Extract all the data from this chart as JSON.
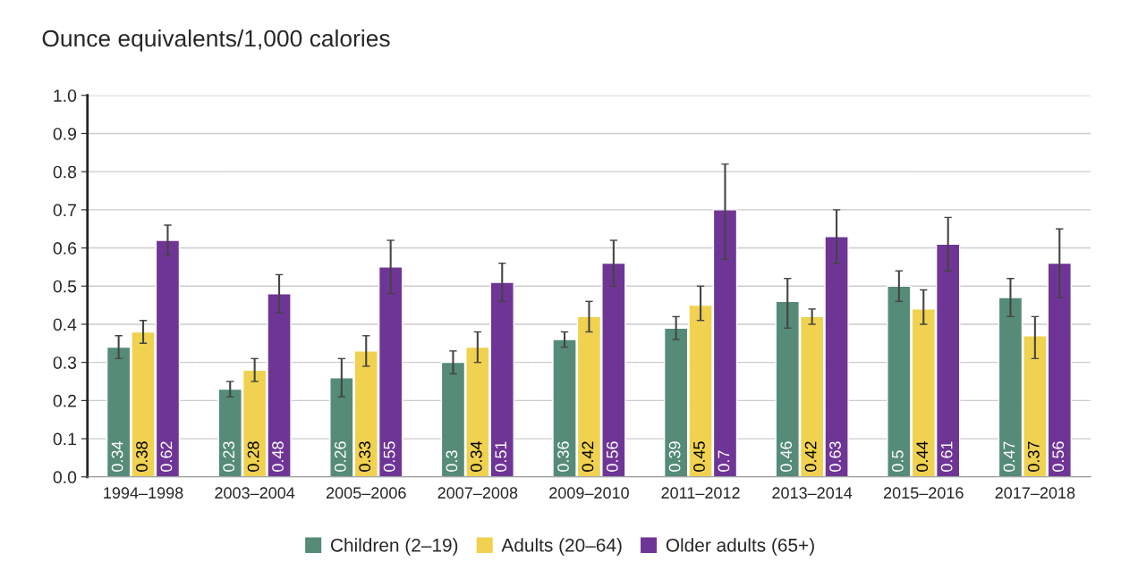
{
  "chart_data": {
    "type": "bar",
    "title": "Ounce equivalents/1,000 calories",
    "categories": [
      "1994–1998",
      "2003–2004",
      "2005–2006",
      "2007–2008",
      "2009–2010",
      "2011–2012",
      "2013–2014",
      "2015–2016",
      "2017–2018"
    ],
    "series": [
      {
        "name": "Children (2–19)",
        "color": "#558b77",
        "values": [
          0.34,
          0.23,
          0.26,
          0.3,
          0.36,
          0.39,
          0.46,
          0.5,
          0.47
        ],
        "errors": [
          [
            0.31,
            0.37
          ],
          [
            0.21,
            0.25
          ],
          [
            0.21,
            0.31
          ],
          [
            0.27,
            0.33
          ],
          [
            0.34,
            0.38
          ],
          [
            0.36,
            0.42
          ],
          [
            0.39,
            0.52
          ],
          [
            0.46,
            0.54
          ],
          [
            0.42,
            0.52
          ]
        ]
      },
      {
        "name": "Adults (20–64)",
        "color": "#f0d250",
        "values": [
          0.38,
          0.28,
          0.33,
          0.34,
          0.42,
          0.45,
          0.42,
          0.44,
          0.37
        ],
        "errors": [
          [
            0.35,
            0.41
          ],
          [
            0.25,
            0.31
          ],
          [
            0.29,
            0.37
          ],
          [
            0.3,
            0.38
          ],
          [
            0.38,
            0.46
          ],
          [
            0.41,
            0.5
          ],
          [
            0.4,
            0.44
          ],
          [
            0.4,
            0.49
          ],
          [
            0.31,
            0.42
          ]
        ]
      },
      {
        "name": "Older adults (65+)",
        "color": "#6f3596",
        "values": [
          0.62,
          0.48,
          0.55,
          0.51,
          0.56,
          0.7,
          0.63,
          0.61,
          0.56
        ],
        "errors": [
          [
            0.58,
            0.66
          ],
          [
            0.43,
            0.53
          ],
          [
            0.48,
            0.62
          ],
          [
            0.46,
            0.56
          ],
          [
            0.5,
            0.62
          ],
          [
            0.57,
            0.82
          ],
          [
            0.56,
            0.7
          ],
          [
            0.54,
            0.68
          ],
          [
            0.47,
            0.65
          ]
        ]
      }
    ],
    "ylim": [
      0,
      1.0
    ],
    "yticks": [
      {
        "value": 0,
        "label": "0.0"
      },
      0.1,
      0.2,
      0.3,
      0.4,
      0.5,
      0.6,
      0.7,
      0.8,
      0.9,
      {
        "value": 1.0,
        "label": "1.0"
      }
    ],
    "grid": "y",
    "legend": "bottom",
    "data_labels": true
  }
}
